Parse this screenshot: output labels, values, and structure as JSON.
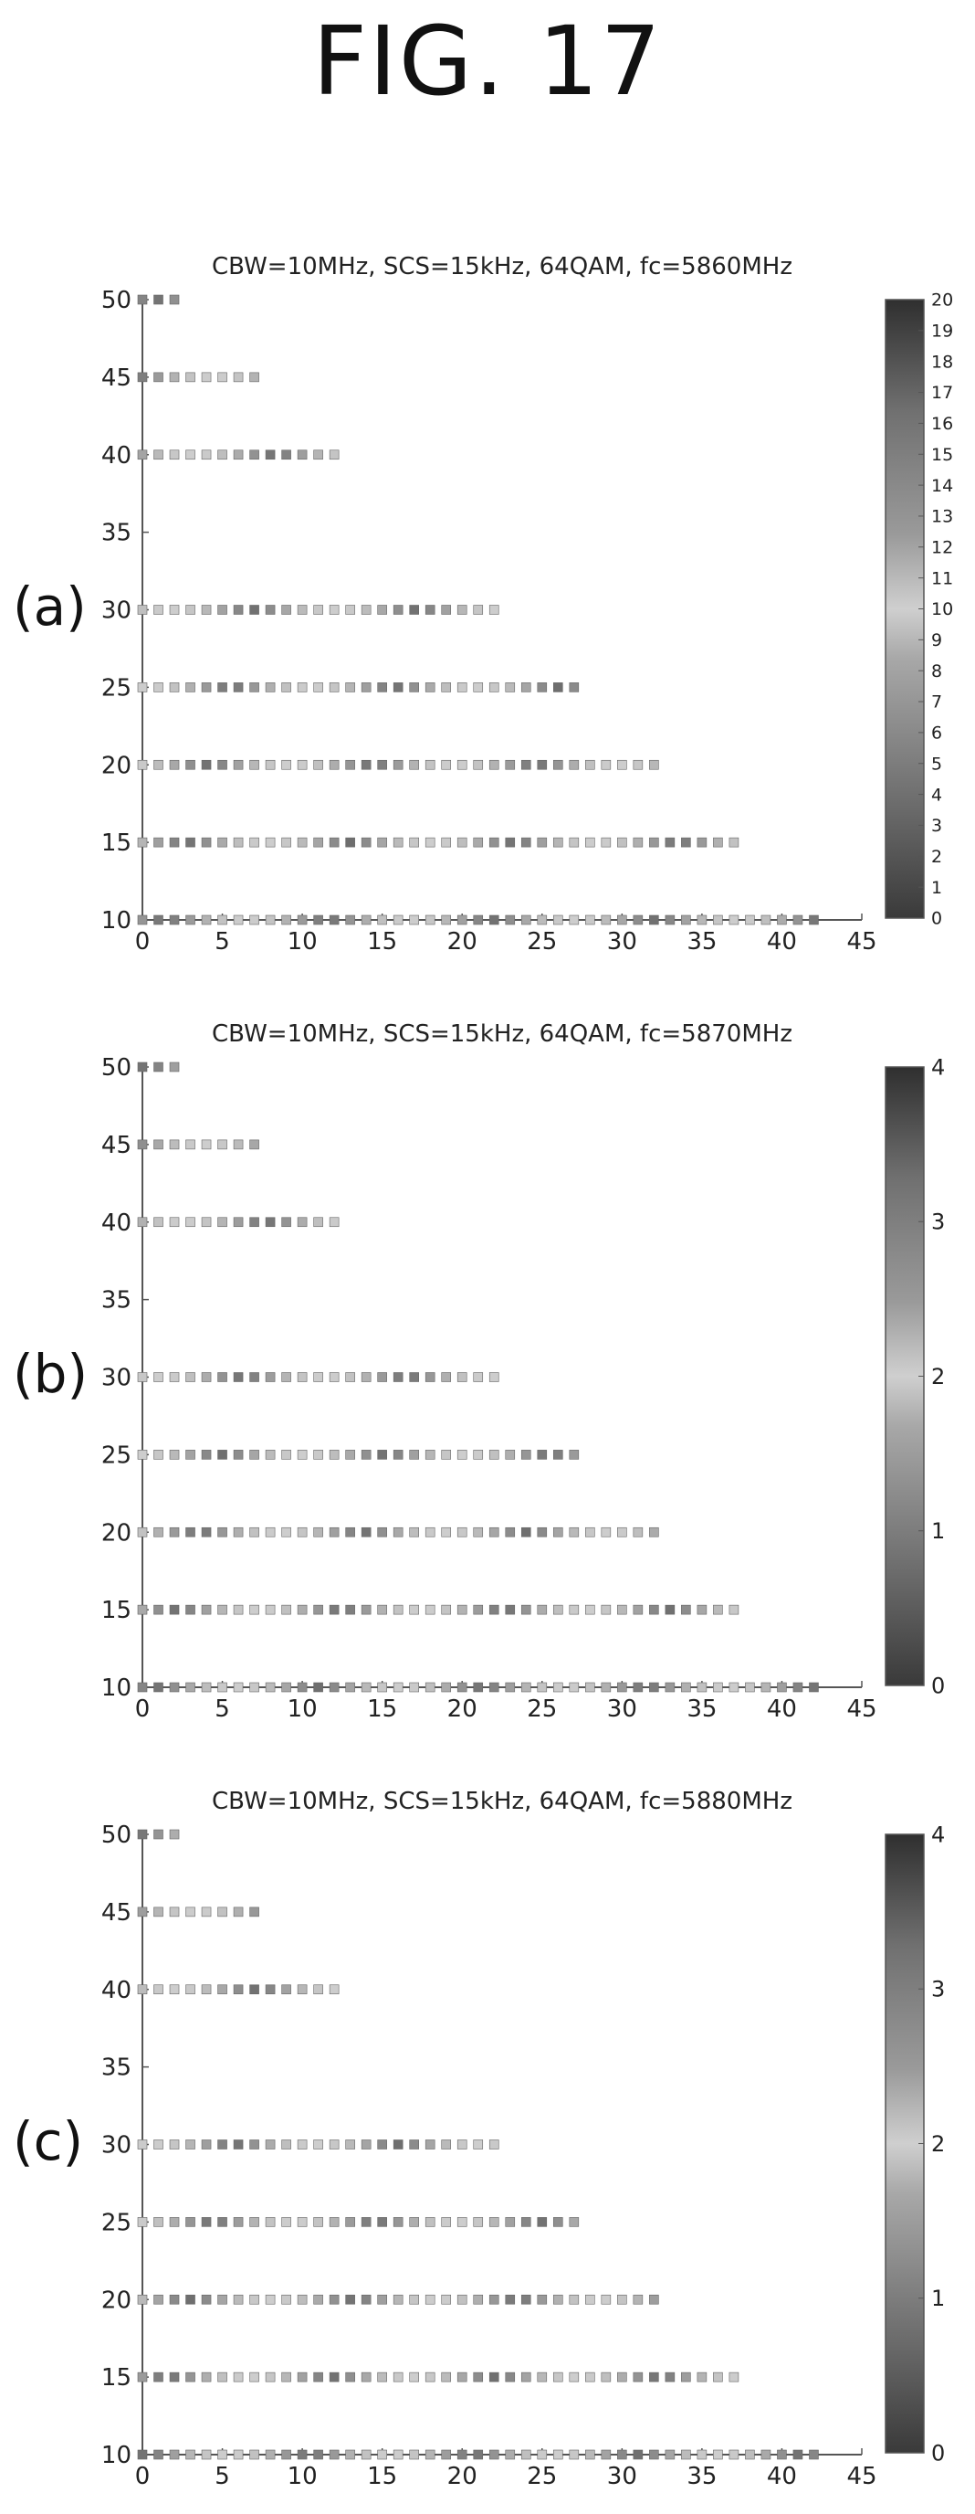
{
  "figure": {
    "title": "FIG. 17"
  },
  "chart_data": [
    {
      "panel": "(a)",
      "type": "scatter",
      "title": "CBW=10MHz, SCS=15kHz, 64QAM, fc=5860MHz",
      "xlabel": "",
      "ylabel": "",
      "xlim": [
        0,
        45
      ],
      "ylim": [
        10,
        50
      ],
      "xticks": [
        0,
        5,
        10,
        15,
        20,
        25,
        30,
        35,
        40,
        45
      ],
      "yticks": [
        10,
        15,
        20,
        25,
        30,
        35,
        40,
        45,
        50
      ],
      "grid": false,
      "marker": "square",
      "colorbar": {
        "min": 0,
        "max": 20,
        "ticks": [
          0,
          1,
          2,
          3,
          4,
          5,
          6,
          7,
          8,
          9,
          10,
          11,
          12,
          13,
          14,
          15,
          16,
          17,
          18,
          19,
          20
        ]
      },
      "rows": [
        {
          "y": 10,
          "x_start": 0,
          "x_end": 42
        },
        {
          "y": 15,
          "x_start": 0,
          "x_end": 37
        },
        {
          "y": 20,
          "x_start": 0,
          "x_end": 32
        },
        {
          "y": 25,
          "x_start": 0,
          "x_end": 27
        },
        {
          "y": 30,
          "x_start": 0,
          "x_end": 22
        },
        {
          "y": 40,
          "x_start": 0,
          "x_end": 12
        },
        {
          "y": 45,
          "x_start": 0,
          "x_end": 7
        },
        {
          "y": 50,
          "x_start": 0,
          "x_end": 2
        }
      ]
    },
    {
      "panel": "(b)",
      "type": "scatter",
      "title": "CBW=10MHz, SCS=15kHz, 64QAM, fc=5870MHz",
      "xlabel": "",
      "ylabel": "",
      "xlim": [
        0,
        45
      ],
      "ylim": [
        10,
        50
      ],
      "xticks": [
        0,
        5,
        10,
        15,
        20,
        25,
        30,
        35,
        40,
        45
      ],
      "yticks": [
        10,
        15,
        20,
        25,
        30,
        35,
        40,
        45,
        50
      ],
      "grid": false,
      "marker": "square",
      "colorbar": {
        "min": 0,
        "max": 4,
        "ticks": [
          0,
          1,
          2,
          3,
          4
        ]
      },
      "rows": [
        {
          "y": 10,
          "x_start": 0,
          "x_end": 42
        },
        {
          "y": 15,
          "x_start": 0,
          "x_end": 37
        },
        {
          "y": 20,
          "x_start": 0,
          "x_end": 32
        },
        {
          "y": 25,
          "x_start": 0,
          "x_end": 27
        },
        {
          "y": 30,
          "x_start": 0,
          "x_end": 22
        },
        {
          "y": 40,
          "x_start": 0,
          "x_end": 12
        },
        {
          "y": 45,
          "x_start": 0,
          "x_end": 7
        },
        {
          "y": 50,
          "x_start": 0,
          "x_end": 2
        }
      ]
    },
    {
      "panel": "(c)",
      "type": "scatter",
      "title": "CBW=10MHz, SCS=15kHz, 64QAM, fc=5880MHz",
      "xlabel": "",
      "ylabel": "",
      "xlim": [
        0,
        45
      ],
      "ylim": [
        10,
        50
      ],
      "xticks": [
        0,
        5,
        10,
        15,
        20,
        25,
        30,
        35,
        40,
        45
      ],
      "yticks": [
        10,
        15,
        20,
        25,
        30,
        35,
        40,
        45,
        50
      ],
      "grid": false,
      "marker": "square",
      "colorbar": {
        "min": 0,
        "max": 4,
        "ticks": [
          0,
          1,
          2,
          3,
          4
        ]
      },
      "rows": [
        {
          "y": 10,
          "x_start": 0,
          "x_end": 42
        },
        {
          "y": 15,
          "x_start": 0,
          "x_end": 37
        },
        {
          "y": 20,
          "x_start": 0,
          "x_end": 32
        },
        {
          "y": 25,
          "x_start": 0,
          "x_end": 27
        },
        {
          "y": 30,
          "x_start": 0,
          "x_end": 22
        },
        {
          "y": 40,
          "x_start": 0,
          "x_end": 12
        },
        {
          "y": 45,
          "x_start": 0,
          "x_end": 7
        },
        {
          "y": 50,
          "x_start": 0,
          "x_end": 2
        }
      ]
    }
  ]
}
